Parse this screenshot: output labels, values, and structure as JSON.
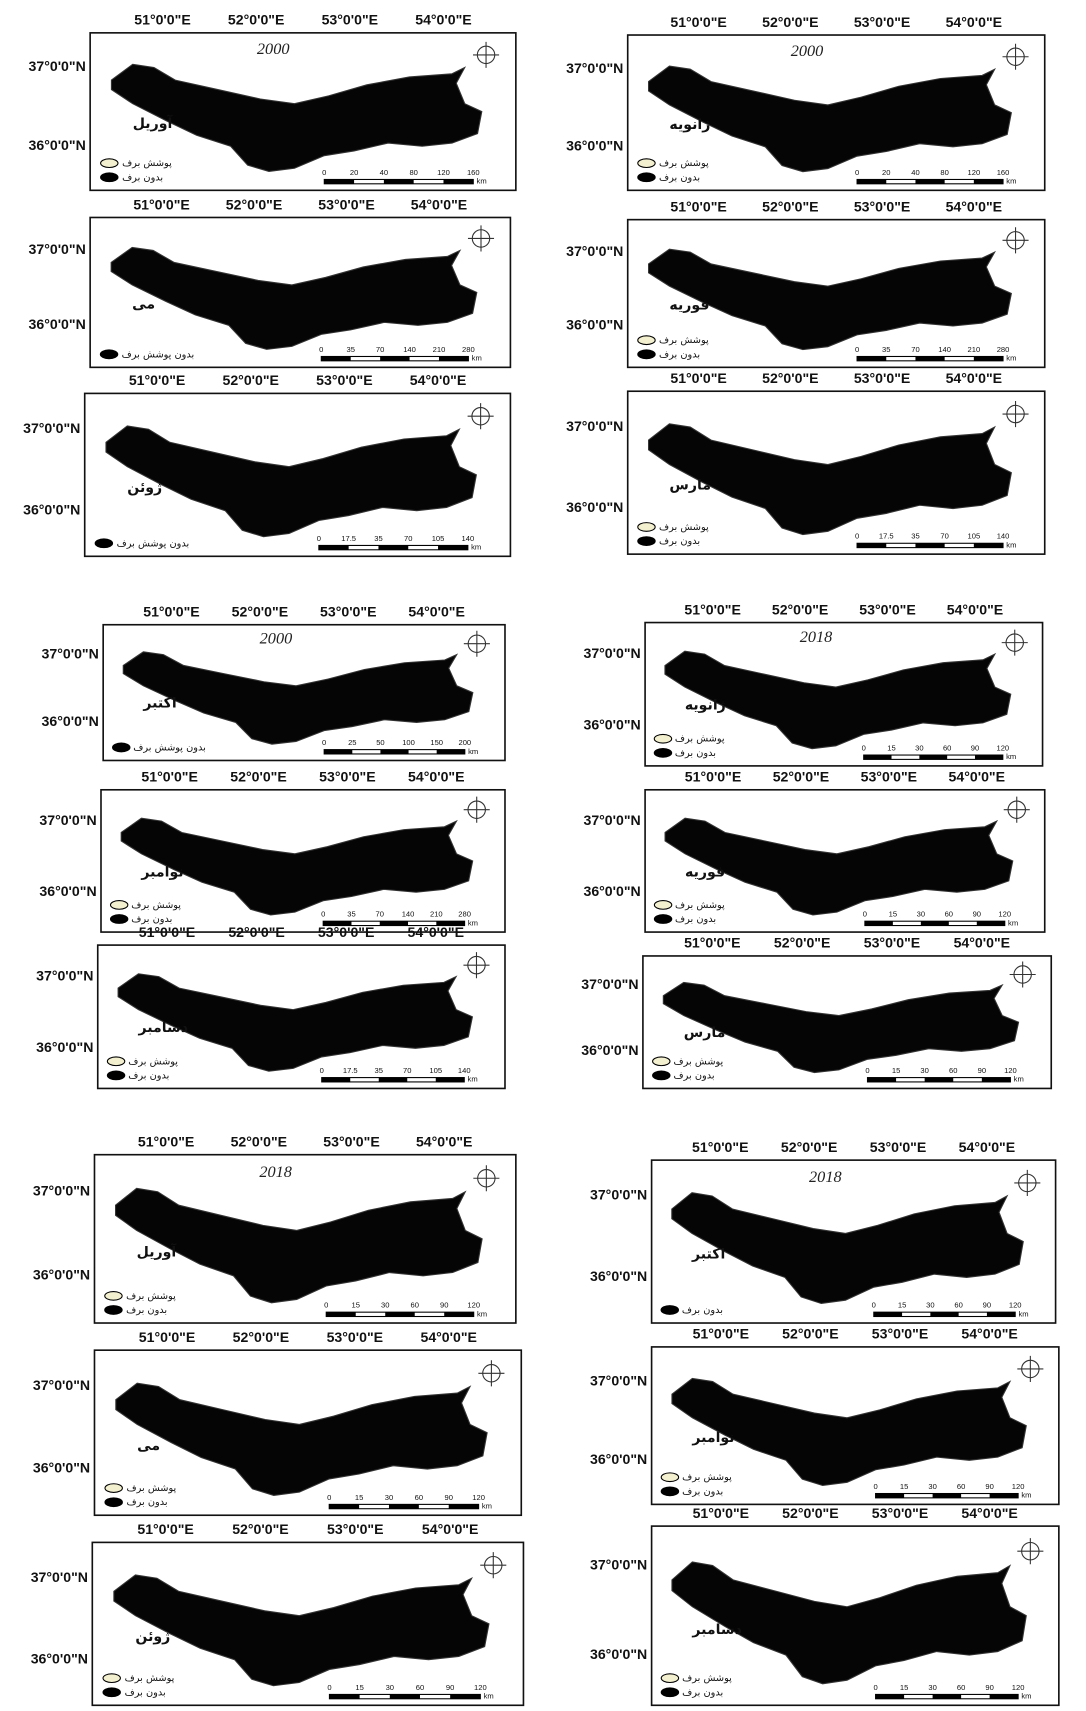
{
  "panels": [
    {
      "year": "2000",
      "month": "آوریل",
      "lon": [
        "51°0'0\"E",
        "52°0'0\"E",
        "53°0'0\"E",
        "54°0'0\"E"
      ],
      "lat": [
        "37°0'0\"N",
        "36°0'0\"N"
      ],
      "legend": [
        "پوشش برف",
        "بدون برف"
      ],
      "scale": [
        "0",
        "20",
        "40",
        "80",
        "120",
        "160"
      ],
      "unit": "km"
    },
    {
      "year": "2000",
      "month": "ژانویه",
      "lon": [
        "51°0'0\"E",
        "52°0'0\"E",
        "53°0'0\"E",
        "54°0'0\"E"
      ],
      "lat": [
        "37°0'0\"N",
        "36°0'0\"N"
      ],
      "legend": [
        "پوشش برف",
        "بدون برف"
      ],
      "scale": [
        "0",
        "20",
        "40",
        "80",
        "120",
        "160"
      ],
      "unit": "km"
    },
    {
      "month": "می",
      "lon": [
        "51°0'0\"E",
        "52°0'0\"E",
        "53°0'0\"E",
        "54°0'0\"E"
      ],
      "lat": [
        "37°0'0\"N",
        "36°0'0\"N"
      ],
      "legend": [
        "بدون پوشش برف"
      ],
      "scale": [
        "0",
        "35",
        "70",
        "140",
        "210",
        "280"
      ],
      "unit": "km"
    },
    {
      "month": "فوریه",
      "lon": [
        "51°0'0\"E",
        "52°0'0\"E",
        "53°0'0\"E",
        "54°0'0\"E"
      ],
      "lat": [
        "37°0'0\"N",
        "36°0'0\"N"
      ],
      "legend": [
        "پوشش برف",
        "بدون برف"
      ],
      "scale": [
        "0",
        "35",
        "70",
        "140",
        "210",
        "280"
      ],
      "unit": "km"
    },
    {
      "month": "ژوئن",
      "lon": [
        "51°0'0\"E",
        "52°0'0\"E",
        "53°0'0\"E",
        "54°0'0\"E"
      ],
      "lat": [
        "37°0'0\"N",
        "36°0'0\"N"
      ],
      "legend": [
        "بدون پوشش برف"
      ],
      "scale": [
        "0",
        "17.5",
        "35",
        "70",
        "105",
        "140"
      ],
      "unit": "km"
    },
    {
      "month": "مارس",
      "lon": [
        "51°0'0\"E",
        "52°0'0\"E",
        "53°0'0\"E",
        "54°0'0\"E"
      ],
      "lat": [
        "37°0'0\"N",
        "36°0'0\"N"
      ],
      "legend": [
        "پوشش برف",
        "بدون برف"
      ],
      "scale": [
        "0",
        "17.5",
        "35",
        "70",
        "105",
        "140"
      ],
      "unit": "km"
    },
    {
      "year": "2000",
      "month": "اکتبر",
      "lon": [
        "51°0'0\"E",
        "52°0'0\"E",
        "53°0'0\"E",
        "54°0'0\"E"
      ],
      "lat": [
        "37°0'0\"N",
        "36°0'0\"N"
      ],
      "legend": [
        "بدون پوشش برف"
      ],
      "scale": [
        "0",
        "25",
        "50",
        "100",
        "150",
        "200"
      ],
      "unit": "km"
    },
    {
      "year": "2018",
      "month": "ژانویه",
      "lon": [
        "51°0'0\"E",
        "52°0'0\"E",
        "53°0'0\"E",
        "54°0'0\"E"
      ],
      "lat": [
        "37°0'0\"N",
        "36°0'0\"N"
      ],
      "legend": [
        "پوشش برف",
        "بدون برف"
      ],
      "scale": [
        "0",
        "15",
        "30",
        "60",
        "90",
        "120"
      ],
      "unit": "km"
    },
    {
      "month": "نوامبر",
      "lon": [
        "51°0'0\"E",
        "52°0'0\"E",
        "53°0'0\"E",
        "54°0'0\"E"
      ],
      "lat": [
        "37°0'0\"N",
        "36°0'0\"N"
      ],
      "legend": [
        "پوشش برف",
        "بدون برف"
      ],
      "scale": [
        "0",
        "35",
        "70",
        "140",
        "210",
        "280"
      ],
      "unit": "km"
    },
    {
      "month": "فوریه",
      "lon": [
        "51°0'0\"E",
        "52°0'0\"E",
        "53°0'0\"E",
        "54°0'0\"E"
      ],
      "lat": [
        "37°0'0\"N",
        "36°0'0\"N"
      ],
      "legend": [
        "پوشش برف",
        "بدون برف"
      ],
      "scale": [
        "0",
        "15",
        "30",
        "60",
        "90",
        "120"
      ],
      "unit": "km"
    },
    {
      "month": "دسامبر",
      "lon": [
        "51°0'0\"E",
        "52°0'0\"E",
        "53°0'0\"E",
        "54°0'0\"E"
      ],
      "lat": [
        "37°0'0\"N",
        "36°0'0\"N"
      ],
      "legend": [
        "پوشش برف",
        "بدون برف"
      ],
      "scale": [
        "0",
        "17.5",
        "35",
        "70",
        "105",
        "140"
      ],
      "unit": "km"
    },
    {
      "month": "مارس",
      "lon": [
        "51°0'0\"E",
        "52°0'0\"E",
        "53°0'0\"E",
        "54°0'0\"E"
      ],
      "lat": [
        "37°0'0\"N",
        "36°0'0\"N"
      ],
      "legend": [
        "پوشش برف",
        "بدون برف"
      ],
      "scale": [
        "0",
        "15",
        "30",
        "60",
        "90",
        "120"
      ],
      "unit": "km"
    },
    {
      "year": "2018",
      "month": "آوریل",
      "lon": [
        "51°0'0\"E",
        "52°0'0\"E",
        "53°0'0\"E",
        "54°0'0\"E"
      ],
      "lat": [
        "37°0'0\"N",
        "36°0'0\"N"
      ],
      "legend": [
        "پوشش برف",
        "بدون برف"
      ],
      "scale": [
        "0",
        "15",
        "30",
        "60",
        "90",
        "120"
      ],
      "unit": "km"
    },
    {
      "year": "2018",
      "month": "اکتبر",
      "lon": [
        "51°0'0\"E",
        "52°0'0\"E",
        "53°0'0\"E",
        "54°0'0\"E"
      ],
      "lat": [
        "37°0'0\"N",
        "36°0'0\"N"
      ],
      "legend": [
        "بدون برف"
      ],
      "scale": [
        "0",
        "15",
        "30",
        "60",
        "90",
        "120"
      ],
      "unit": "km"
    },
    {
      "month": "می",
      "lon": [
        "51°0'0\"E",
        "52°0'0\"E",
        "53°0'0\"E",
        "54°0'0\"E"
      ],
      "lat": [
        "37°0'0\"N",
        "36°0'0\"N"
      ],
      "legend": [
        "پوشش برف",
        "بدون برف"
      ],
      "scale": [
        "0",
        "15",
        "30",
        "60",
        "90",
        "120"
      ],
      "unit": "km"
    },
    {
      "month": "نوامبر",
      "lon": [
        "51°0'0\"E",
        "52°0'0\"E",
        "53°0'0\"E",
        "54°0'0\"E"
      ],
      "lat": [
        "37°0'0\"N",
        "36°0'0\"N"
      ],
      "legend": [
        "پوشش برف",
        "بدون برف"
      ],
      "scale": [
        "0",
        "15",
        "30",
        "60",
        "90",
        "120"
      ],
      "unit": "km"
    },
    {
      "month": "ژوئن",
      "lon": [
        "51°0'0\"E",
        "52°0'0\"E",
        "53°0'0\"E",
        "54°0'0\"E"
      ],
      "lat": [
        "37°0'0\"N",
        "36°0'0\"N"
      ],
      "legend": [
        "پوشش برف",
        "بدون برف"
      ],
      "scale": [
        "0",
        "15",
        "30",
        "60",
        "90",
        "120"
      ],
      "unit": "km"
    },
    {
      "month": "دسامبر",
      "lon": [
        "51°0'0\"E",
        "52°0'0\"E",
        "53°0'0\"E",
        "54°0'0\"E"
      ],
      "lat": [
        "37°0'0\"N",
        "36°0'0\"N"
      ],
      "legend": [
        "پوشش برف",
        "بدون برف"
      ],
      "scale": [
        "0",
        "15",
        "30",
        "60",
        "90",
        "120"
      ],
      "unit": "km"
    }
  ]
}
